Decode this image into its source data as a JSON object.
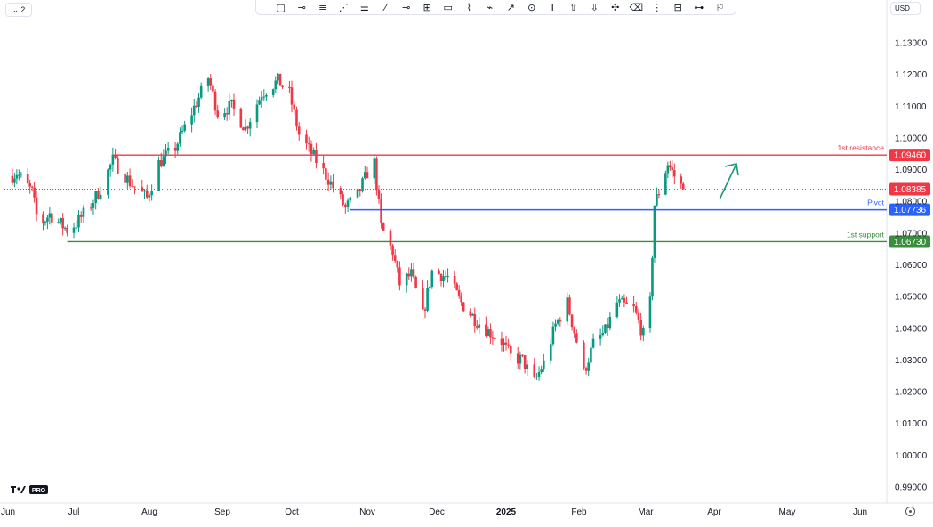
{
  "toolbar": {
    "layout_label": "2",
    "currency": "USD",
    "tools": [
      "grip-icon",
      "rectangle-icon",
      "horizontal-ray-icon",
      "parallel-channel-icon",
      "pitchfork-icon",
      "fib-retracement-icon",
      "trend-line-icon",
      "horizontal-line-icon",
      "cross-line-icon",
      "callout-icon",
      "brush-icon",
      "path-icon",
      "arrow-icon",
      "circle-icon",
      "text-icon",
      "arrow-up-icon",
      "arrow-down-icon",
      "pattern-icon",
      "eraser-icon",
      "vertical-line-icon",
      "long-position-icon",
      "measure-icon",
      "flag-icon"
    ]
  },
  "chart_data": {
    "type": "candlestick",
    "title": "",
    "xlabel": "",
    "ylabel": "",
    "ylim": [
      0.985,
      1.139
    ],
    "y_ticks": [
      "1.13000",
      "1.12000",
      "1.11000",
      "1.10000",
      "1.09000",
      "1.08000",
      "1.07000",
      "1.06000",
      "1.05000",
      "1.04000",
      "1.03000",
      "1.02000",
      "1.01000",
      "1.00000",
      "0.99000"
    ],
    "x_ticks": [
      {
        "label": "Jun",
        "date": "2024-06-01"
      },
      {
        "label": "Jul",
        "date": "2024-07-01"
      },
      {
        "label": "Aug",
        "date": "2024-08-01"
      },
      {
        "label": "Sep",
        "date": "2024-09-01"
      },
      {
        "label": "Oct",
        "date": "2024-10-01"
      },
      {
        "label": "Nov",
        "date": "2024-11-01"
      },
      {
        "label": "Dec",
        "date": "2024-12-01"
      },
      {
        "label": "2025",
        "date": "2025-01-01",
        "bold": true
      },
      {
        "label": "Feb",
        "date": "2025-02-01"
      },
      {
        "label": "Mar",
        "date": "2025-03-01"
      },
      {
        "label": "Apr",
        "date": "2025-04-01"
      },
      {
        "label": "May",
        "date": "2025-05-01"
      },
      {
        "label": "Jun",
        "date": "2025-06-01"
      }
    ],
    "price_path": [
      [
        "2024-06-01",
        1.087
      ],
      [
        "2024-06-05",
        1.089
      ],
      [
        "2024-06-12",
        1.083
      ],
      [
        "2024-06-15",
        1.072
      ],
      [
        "2024-06-20",
        1.076
      ],
      [
        "2024-06-28",
        1.071
      ],
      [
        "2024-07-02",
        1.073
      ],
      [
        "2024-07-08",
        1.079
      ],
      [
        "2024-07-12",
        1.084
      ],
      [
        "2024-07-17",
        1.093
      ],
      [
        "2024-07-24",
        1.086
      ],
      [
        "2024-07-31",
        1.081
      ],
      [
        "2024-08-05",
        1.092
      ],
      [
        "2024-08-12",
        1.097
      ],
      [
        "2024-08-19",
        1.108
      ],
      [
        "2024-08-26",
        1.119
      ],
      [
        "2024-08-30",
        1.108
      ],
      [
        "2024-09-05",
        1.11
      ],
      [
        "2024-09-11",
        1.103
      ],
      [
        "2024-09-18",
        1.114
      ],
      [
        "2024-09-25",
        1.118
      ],
      [
        "2024-09-30",
        1.114
      ],
      [
        "2024-10-04",
        1.101
      ],
      [
        "2024-10-10",
        1.094
      ],
      [
        "2024-10-16",
        1.087
      ],
      [
        "2024-10-23",
        1.078
      ],
      [
        "2024-10-28",
        1.082
      ],
      [
        "2024-11-01",
        1.089
      ],
      [
        "2024-11-04",
        1.092
      ],
      [
        "2024-11-07",
        1.072
      ],
      [
        "2024-11-12",
        1.064
      ],
      [
        "2024-11-15",
        1.054
      ],
      [
        "2024-11-20",
        1.057
      ],
      [
        "2024-11-25",
        1.044
      ],
      [
        "2024-11-29",
        1.058
      ],
      [
        "2024-12-06",
        1.056
      ],
      [
        "2024-12-12",
        1.048
      ],
      [
        "2024-12-18",
        1.043
      ],
      [
        "2024-12-24",
        1.039
      ],
      [
        "2024-12-30",
        1.036
      ],
      [
        "2025-01-03",
        1.031
      ],
      [
        "2025-01-08",
        1.03
      ],
      [
        "2025-01-13",
        1.023
      ],
      [
        "2025-01-17",
        1.029
      ],
      [
        "2025-01-22",
        1.041
      ],
      [
        "2025-01-27",
        1.048
      ],
      [
        "2025-01-31",
        1.036
      ],
      [
        "2025-02-03",
        1.026
      ],
      [
        "2025-02-07",
        1.035
      ],
      [
        "2025-02-12",
        1.039
      ],
      [
        "2025-02-17",
        1.048
      ],
      [
        "2025-02-24",
        1.046
      ],
      [
        "2025-02-28",
        1.038
      ],
      [
        "2025-03-03",
        1.048
      ],
      [
        "2025-03-05",
        1.079
      ],
      [
        "2025-03-07",
        1.083
      ],
      [
        "2025-03-11",
        1.092
      ],
      [
        "2025-03-14",
        1.088
      ],
      [
        "2025-03-18",
        1.0838
      ]
    ],
    "last_price": 1.08385,
    "levels": [
      {
        "name": "1st resistance",
        "value": 1.0946,
        "label": "1.09460",
        "color": "#f23645",
        "start_date": "2024-07-17"
      },
      {
        "name": "Pivot",
        "value": 1.07736,
        "label": "1.07736",
        "color": "#2962ff",
        "start_date": "2024-10-25"
      },
      {
        "name": "1st support",
        "value": 1.0673,
        "label": "1.06730",
        "color": "#388e3c",
        "start_date": "2024-06-28"
      }
    ],
    "annotation": {
      "type": "arrow",
      "color": "#1a9a7a",
      "direction": "up"
    },
    "up_color": "#089981",
    "down_color": "#f23645",
    "last_price_color": "#f23645",
    "grid": false
  }
}
